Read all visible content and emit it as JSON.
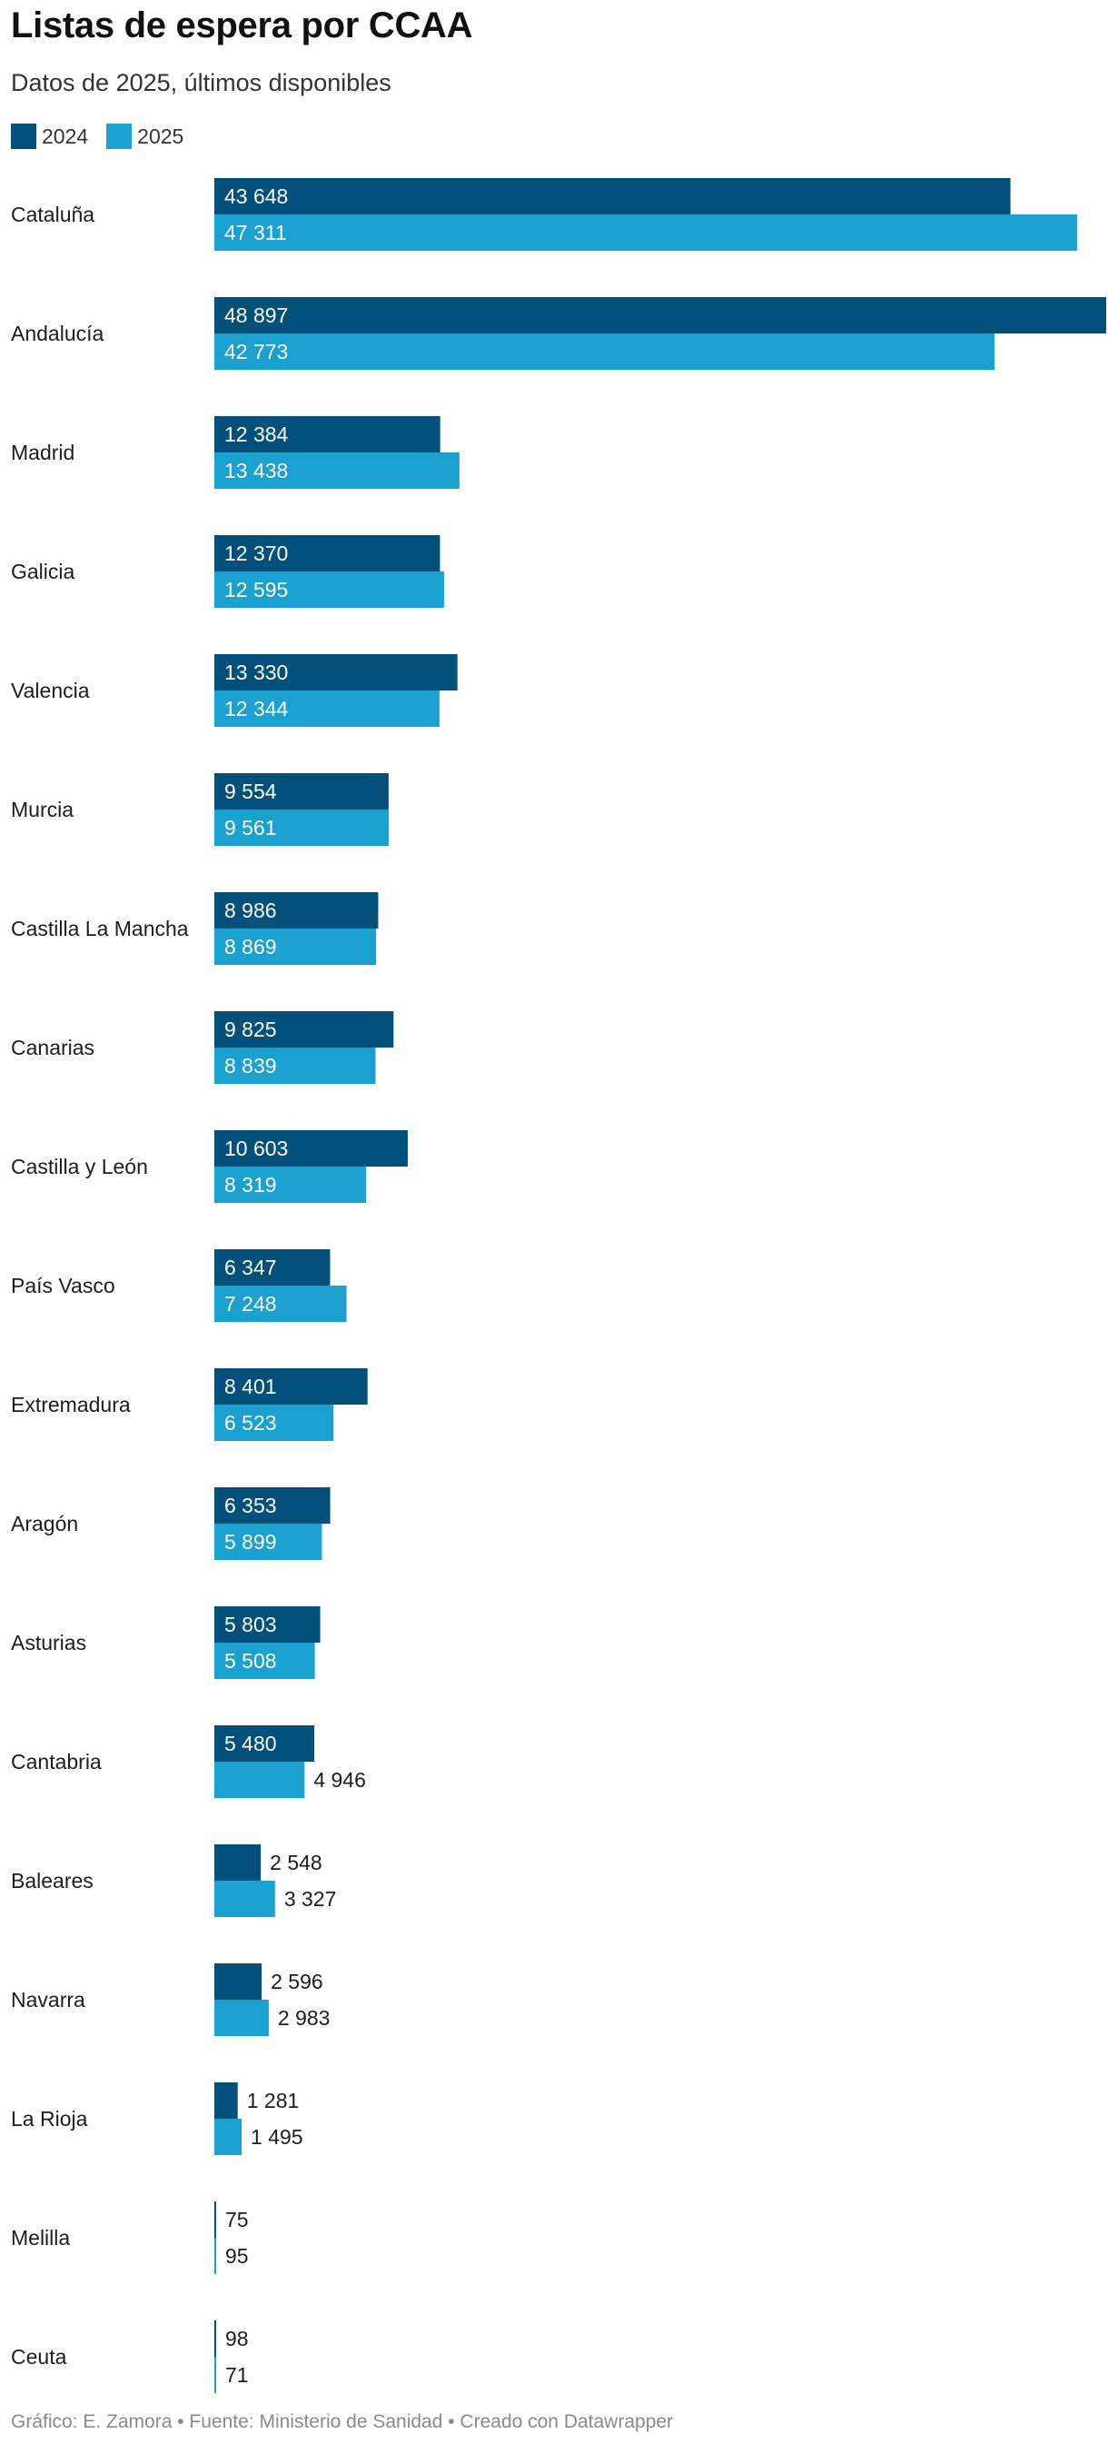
{
  "chart_data": {
    "type": "bar",
    "orientation": "horizontal",
    "title": "Listas de espera por CCAA",
    "subtitle": "Datos de 2025, últimos disponibles",
    "legend_position": "top-left",
    "grid": false,
    "categories": [
      "Cataluña",
      "Andalucía",
      "Madrid",
      "Galicia",
      "Valencia",
      "Murcia",
      "Castilla La Mancha",
      "Canarias",
      "Castilla y León",
      "País Vasco",
      "Extremadura",
      "Aragón",
      "Asturias",
      "Cantabria",
      "Baleares",
      "Navarra",
      "La Rioja",
      "Melilla",
      "Ceuta"
    ],
    "series": [
      {
        "name": "2024",
        "color": "#03507a",
        "values": [
          43648,
          48897,
          12384,
          12370,
          13330,
          9554,
          8986,
          9825,
          10603,
          6347,
          8401,
          6353,
          5803,
          5480,
          2548,
          2596,
          1281,
          75,
          98
        ],
        "labels": [
          "43 648",
          "48 897",
          "12 384",
          "12 370",
          "13 330",
          "9 554",
          "8 986",
          "9 825",
          "10 603",
          "6 347",
          "8 401",
          "6 353",
          "5 803",
          "5 480",
          "2 548",
          "2 596",
          "1 281",
          "75",
          "98"
        ]
      },
      {
        "name": "2025",
        "color": "#1aa1d0",
        "values": [
          47311,
          42773,
          13438,
          12595,
          12344,
          9561,
          8869,
          8839,
          8319,
          7248,
          6523,
          5899,
          5508,
          4946,
          3327,
          2983,
          1495,
          95,
          71
        ],
        "labels": [
          "47 311",
          "42 773",
          "13 438",
          "12 595",
          "12 344",
          "9 561",
          "8 869",
          "8 839",
          "8 319",
          "7 248",
          "6 523",
          "5 899",
          "5 508",
          "4 946",
          "3 327",
          "2 983",
          "1 495",
          "95",
          "71"
        ]
      }
    ],
    "xlim": [
      0,
      48897
    ]
  },
  "footer": "Gráfico: E. Zamora • Fuente: Ministerio de Sanidad • Creado con Datawrapper"
}
